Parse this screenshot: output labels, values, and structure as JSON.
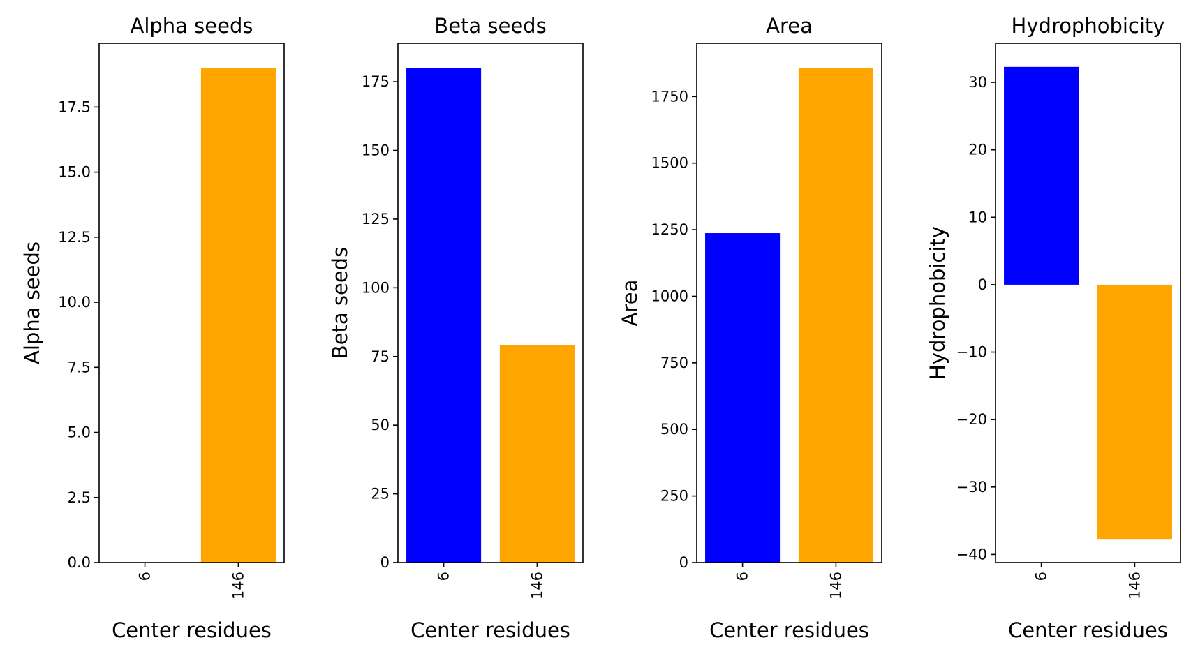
{
  "chart_data": [
    {
      "type": "bar",
      "title": "Alpha seeds",
      "xlabel": "Center residues",
      "ylabel": "Alpha seeds",
      "categories": [
        "6",
        "146"
      ],
      "values": [
        0,
        19
      ],
      "bar_colors": [
        "#0000ff",
        "#ffa500"
      ],
      "ylim": [
        0,
        19.95
      ],
      "yticks": [
        0.0,
        2.5,
        5.0,
        7.5,
        10.0,
        12.5,
        15.0,
        17.5
      ],
      "ytick_labels": [
        "0.0",
        "2.5",
        "5.0",
        "7.5",
        "10.0",
        "12.5",
        "15.0",
        "17.5"
      ],
      "grid": false
    },
    {
      "type": "bar",
      "title": "Beta seeds",
      "xlabel": "Center residues",
      "ylabel": "Beta seeds",
      "categories": [
        "6",
        "146"
      ],
      "values": [
        180,
        79
      ],
      "bar_colors": [
        "#0000ff",
        "#ffa500"
      ],
      "ylim": [
        0,
        189
      ],
      "yticks": [
        0,
        25,
        50,
        75,
        100,
        125,
        150,
        175
      ],
      "ytick_labels": [
        "0",
        "25",
        "50",
        "75",
        "100",
        "125",
        "150",
        "175"
      ],
      "grid": false
    },
    {
      "type": "bar",
      "title": "Area",
      "xlabel": "Center residues",
      "ylabel": "Area",
      "categories": [
        "6",
        "146"
      ],
      "values": [
        1237,
        1858
      ],
      "bar_colors": [
        "#0000ff",
        "#ffa500"
      ],
      "ylim": [
        0,
        1950
      ],
      "yticks": [
        0,
        250,
        500,
        750,
        1000,
        1250,
        1500,
        1750
      ],
      "ytick_labels": [
        "0",
        "250",
        "500",
        "750",
        "1000",
        "1250",
        "1500",
        "1750"
      ],
      "grid": false
    },
    {
      "type": "bar",
      "title": "Hydrophobicity",
      "xlabel": "Center residues",
      "ylabel": "Hydrophobicity",
      "categories": [
        "6",
        "146"
      ],
      "values": [
        32.3,
        -37.7
      ],
      "bar_colors": [
        "#0000ff",
        "#ffa500"
      ],
      "ylim": [
        -41.2,
        35.8
      ],
      "yticks": [
        -40,
        -30,
        -20,
        -10,
        0,
        10,
        20,
        30
      ],
      "ytick_labels": [
        "−40",
        "−30",
        "−20",
        "−10",
        "0",
        "10",
        "20",
        "30"
      ],
      "grid": false
    }
  ]
}
